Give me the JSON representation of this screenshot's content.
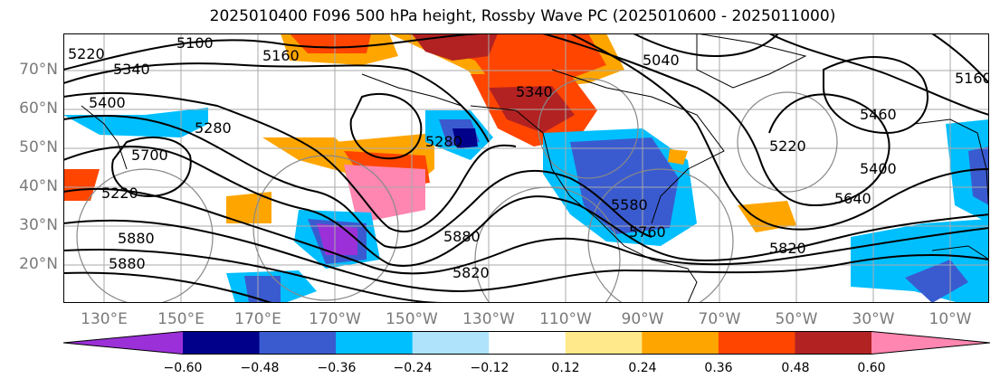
{
  "title": "2025010400 F096 500 hPa height, Rossby Wave PC (2025010600 - 2025011000)",
  "latitude_labels": [
    "70°N",
    "60°N",
    "50°N",
    "40°N",
    "30°N",
    "20°N"
  ],
  "longitude_labels": [
    "130°E",
    "150°E",
    "170°E",
    "170°W",
    "150°W",
    "130°W",
    "110°W",
    "90°W",
    "70°W",
    "50°W",
    "30°W",
    "10°W"
  ],
  "contour_labels": [
    "5220",
    "5100",
    "5160",
    "5340",
    "5400",
    "5280",
    "5700",
    "5220",
    "5880",
    "5880",
    "5820",
    "5340",
    "5280",
    "5760",
    "5880",
    "5820",
    "5400",
    "5640",
    "5580",
    "5460",
    "5220",
    "5160",
    "5040"
  ],
  "colorbar": {
    "tick_labels": [
      "−0.60",
      "−0.48",
      "−0.36",
      "−0.24",
      "−0.12",
      "0.12",
      "0.24",
      "0.36",
      "0.48",
      "0.60"
    ],
    "colors": [
      "#9b30d9",
      "#00008b",
      "#3a5bd0",
      "#00bfff",
      "#aee3fb",
      "#ffffff",
      "#ffe98a",
      "#ffa500",
      "#ff4500",
      "#b22222",
      "#ff86b0"
    ]
  }
}
